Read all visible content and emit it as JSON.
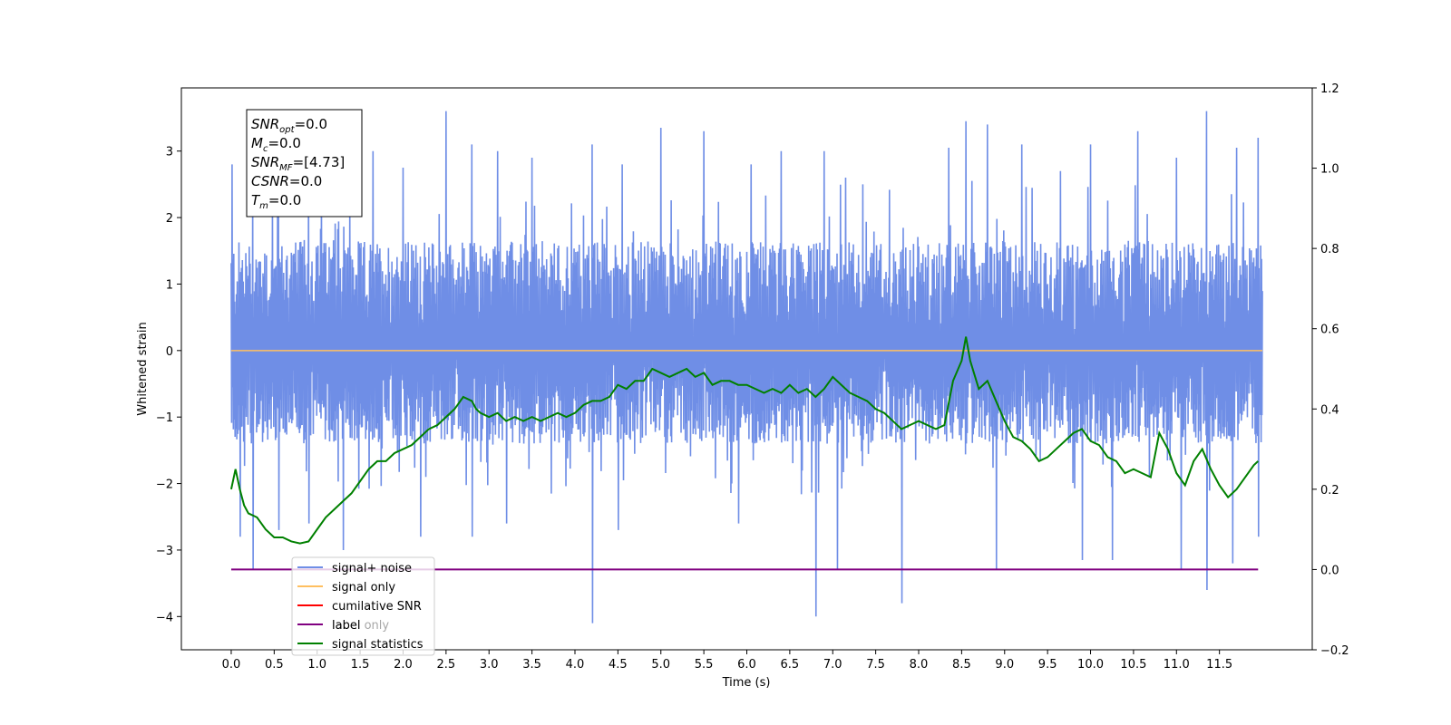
{
  "chart_data": {
    "type": "line",
    "xlabel": "Time (s)",
    "ylabel": "Whitened strain",
    "xlim": [
      -0.58,
      12.58
    ],
    "ylim": [
      -4.5,
      3.95
    ],
    "y2lim": [
      -0.2,
      1.2
    ],
    "x_ticks": [
      "0.0",
      "0.5",
      "1.0",
      "1.5",
      "2.0",
      "2.5",
      "3.0",
      "3.5",
      "4.0",
      "4.5",
      "5.0",
      "5.5",
      "6.0",
      "6.5",
      "7.0",
      "7.5",
      "8.0",
      "8.5",
      "9.0",
      "9.5",
      "10.0",
      "10.5",
      "11.0",
      "11.5"
    ],
    "y_ticks": [
      "3",
      "2",
      "1",
      "0",
      "−1",
      "−2",
      "−3",
      "−4"
    ],
    "y2_ticks": [
      "1.2",
      "1.0",
      "0.8",
      "0.6",
      "0.4",
      "0.2",
      "0.0",
      "−0.2"
    ],
    "legend_position": "lower-left",
    "info_box": [
      {
        "base": "SNR",
        "sub": "opt",
        "value": "=0.0"
      },
      {
        "base": "M",
        "sub": "c",
        "value": "=0.0"
      },
      {
        "base": "SNR",
        "sub": "MF",
        "value": "=[4.73]"
      },
      {
        "base": "CSNR",
        "sub": "",
        "value": "=0.0"
      },
      {
        "base": "T",
        "sub": "m",
        "value": "=0.0"
      }
    ],
    "series": [
      {
        "name": "signal+ noise",
        "color": "#6f8ee6",
        "axis": "left",
        "kind": "noise",
        "x_range": [
          0,
          12.0
        ],
        "typical_band": [
          -1.3,
          1.5
        ],
        "peaks": [
          [
            0.01,
            2.8
          ],
          [
            0.25,
            2.4
          ],
          [
            0.55,
            2.3
          ],
          [
            0.9,
            2.6
          ],
          [
            1.05,
            2.4
          ],
          [
            1.65,
            3.0
          ],
          [
            2.0,
            2.75
          ],
          [
            2.5,
            3.6
          ],
          [
            2.8,
            3.1
          ],
          [
            3.1,
            3.0
          ],
          [
            3.5,
            2.9
          ],
          [
            4.2,
            3.1
          ],
          [
            4.55,
            2.8
          ],
          [
            5.0,
            3.35
          ],
          [
            5.5,
            3.3
          ],
          [
            6.05,
            2.8
          ],
          [
            6.4,
            3.0
          ],
          [
            6.9,
            3.0
          ],
          [
            7.15,
            2.6
          ],
          [
            7.35,
            2.5
          ],
          [
            8.35,
            3.05
          ],
          [
            8.55,
            3.45
          ],
          [
            8.8,
            3.4
          ],
          [
            9.2,
            3.1
          ],
          [
            9.65,
            2.7
          ],
          [
            10.0,
            3.1
          ],
          [
            10.55,
            3.3
          ],
          [
            11.0,
            2.9
          ],
          [
            11.35,
            3.6
          ],
          [
            11.7,
            3.05
          ],
          [
            11.95,
            3.2
          ]
        ],
        "troughs": [
          [
            0.25,
            -3.3
          ],
          [
            0.1,
            -2.8
          ],
          [
            0.55,
            -2.7
          ],
          [
            0.9,
            -2.6
          ],
          [
            1.3,
            -3.0
          ],
          [
            2.2,
            -2.8
          ],
          [
            2.8,
            -2.8
          ],
          [
            3.2,
            -2.6
          ],
          [
            4.2,
            -4.1
          ],
          [
            4.5,
            -2.7
          ],
          [
            5.9,
            -2.6
          ],
          [
            6.8,
            -4.0
          ],
          [
            7.05,
            -3.3
          ],
          [
            7.8,
            -3.8
          ],
          [
            8.9,
            -3.3
          ],
          [
            9.9,
            -3.15
          ],
          [
            10.25,
            -3.15
          ],
          [
            11.05,
            -3.3
          ],
          [
            11.35,
            -3.6
          ],
          [
            11.65,
            -3.2
          ],
          [
            11.95,
            -2.8
          ]
        ]
      },
      {
        "name": "signal only",
        "color": "#ffbf60",
        "axis": "left",
        "x": [
          0,
          12.0
        ],
        "y": [
          0,
          0
        ]
      },
      {
        "name": "cumilative SNR",
        "color": "#ff0000",
        "axis": "right",
        "x": [],
        "y": []
      },
      {
        "name": "label",
        "color": "#800080",
        "axis": "right",
        "x": [
          0,
          11.95
        ],
        "y": [
          0,
          0
        ]
      },
      {
        "name": "label only",
        "color": "#800080",
        "axis": "right",
        "x": [],
        "y": []
      },
      {
        "name": "signal statistics",
        "color": "#008000",
        "axis": "right",
        "x": [
          0.0,
          0.05,
          0.1,
          0.15,
          0.2,
          0.3,
          0.4,
          0.5,
          0.6,
          0.7,
          0.8,
          0.9,
          1.0,
          1.1,
          1.2,
          1.3,
          1.4,
          1.5,
          1.6,
          1.7,
          1.8,
          1.9,
          2.0,
          2.1,
          2.2,
          2.3,
          2.4,
          2.5,
          2.6,
          2.7,
          2.8,
          2.85,
          2.9,
          3.0,
          3.1,
          3.2,
          3.3,
          3.4,
          3.5,
          3.6,
          3.7,
          3.8,
          3.9,
          4.0,
          4.1,
          4.2,
          4.3,
          4.4,
          4.5,
          4.6,
          4.7,
          4.8,
          4.9,
          5.0,
          5.1,
          5.2,
          5.3,
          5.4,
          5.5,
          5.6,
          5.7,
          5.8,
          5.9,
          6.0,
          6.1,
          6.2,
          6.3,
          6.4,
          6.5,
          6.6,
          6.7,
          6.8,
          6.9,
          7.0,
          7.1,
          7.2,
          7.3,
          7.4,
          7.5,
          7.6,
          7.7,
          7.8,
          7.9,
          8.0,
          8.1,
          8.2,
          8.3,
          8.4,
          8.5,
          8.55,
          8.6,
          8.7,
          8.8,
          8.9,
          9.0,
          9.1,
          9.2,
          9.3,
          9.4,
          9.5,
          9.6,
          9.7,
          9.8,
          9.9,
          10.0,
          10.1,
          10.2,
          10.3,
          10.4,
          10.5,
          10.6,
          10.7,
          10.8,
          10.9,
          11.0,
          11.1,
          11.2,
          11.3,
          11.4,
          11.5,
          11.6,
          11.7,
          11.8,
          11.9,
          11.95
        ],
        "y": [
          0.2,
          0.25,
          0.2,
          0.16,
          0.14,
          0.13,
          0.1,
          0.08,
          0.08,
          0.07,
          0.065,
          0.07,
          0.1,
          0.13,
          0.15,
          0.17,
          0.19,
          0.22,
          0.25,
          0.27,
          0.27,
          0.29,
          0.3,
          0.31,
          0.33,
          0.35,
          0.36,
          0.38,
          0.4,
          0.43,
          0.42,
          0.4,
          0.39,
          0.38,
          0.39,
          0.37,
          0.38,
          0.37,
          0.38,
          0.37,
          0.38,
          0.39,
          0.38,
          0.39,
          0.41,
          0.42,
          0.42,
          0.43,
          0.46,
          0.45,
          0.47,
          0.47,
          0.5,
          0.49,
          0.48,
          0.49,
          0.5,
          0.48,
          0.49,
          0.46,
          0.47,
          0.47,
          0.46,
          0.46,
          0.45,
          0.44,
          0.45,
          0.44,
          0.46,
          0.44,
          0.45,
          0.43,
          0.45,
          0.48,
          0.46,
          0.44,
          0.43,
          0.42,
          0.4,
          0.39,
          0.37,
          0.35,
          0.36,
          0.37,
          0.36,
          0.35,
          0.36,
          0.47,
          0.52,
          0.58,
          0.52,
          0.45,
          0.47,
          0.42,
          0.37,
          0.33,
          0.32,
          0.3,
          0.27,
          0.28,
          0.3,
          0.32,
          0.34,
          0.35,
          0.32,
          0.31,
          0.28,
          0.27,
          0.24,
          0.25,
          0.24,
          0.23,
          0.34,
          0.3,
          0.24,
          0.21,
          0.27,
          0.3,
          0.25,
          0.21,
          0.18,
          0.2,
          0.23,
          0.26,
          0.27
        ]
      }
    ]
  }
}
